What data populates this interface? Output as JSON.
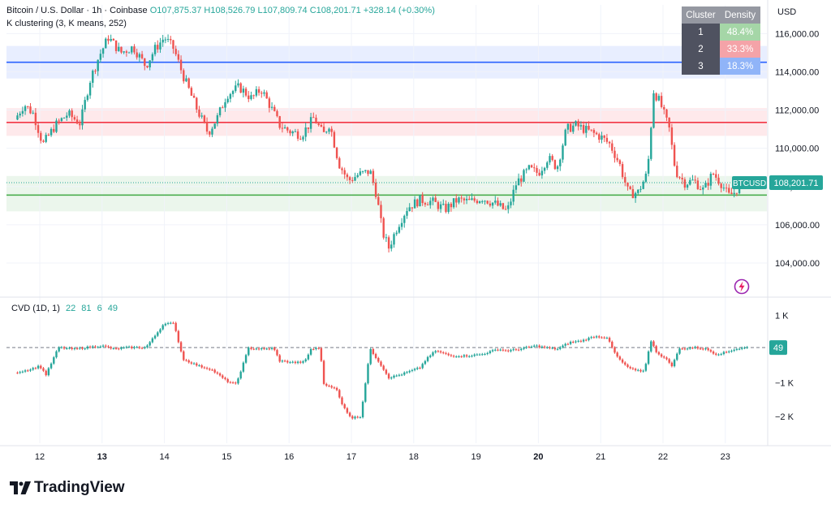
{
  "header": {
    "symbol": "Bitcoin / U.S. Dollar · 1h · Coinbase",
    "open_label": "O",
    "open": "107,875.37",
    "high_label": "H",
    "high": "108,526.79",
    "low_label": "L",
    "low": "107,809.74",
    "close_label": "C",
    "close": "108,201.71",
    "change": "+328.14 (+0.30%)",
    "indicator": "K clustering (3, K means, 252)"
  },
  "currency": "USD",
  "cluster_table": {
    "headers": [
      "Cluster",
      "Density"
    ],
    "rows": [
      {
        "id": "1",
        "density": "48.4%",
        "color": "#a5d6a7"
      },
      {
        "id": "2",
        "density": "33.3%",
        "color": "#f4a3a8"
      },
      {
        "id": "3",
        "density": "18.3%",
        "color": "#90b4f8"
      }
    ]
  },
  "price_tag": {
    "symbol": "BTCUSD",
    "value": "108,201.71"
  },
  "cvd": {
    "label": "CVD (1D, 1)",
    "values": [
      "22",
      "81",
      "6",
      "49"
    ],
    "tag": "49"
  },
  "logo": "TradingView",
  "colors": {
    "up": "#26a69a",
    "down": "#ef5350",
    "blue_line": "#2962ff",
    "red_line": "#f23645",
    "green_line": "#4caf50"
  },
  "chart_data": {
    "type": "candlestick",
    "x_tick_labels": [
      "12",
      "13",
      "14",
      "15",
      "16",
      "17",
      "18",
      "19",
      "20",
      "21",
      "22",
      "23"
    ],
    "x_tick_bold": [
      "13",
      "20"
    ],
    "price_axis": {
      "ticks": [
        104000,
        106000,
        108000,
        110000,
        112000,
        114000,
        116000
      ],
      "tick_labels": [
        "104,000.00",
        "106,000.00",
        "108,000.00",
        "110,000.00",
        "112,000.00",
        "114,000.00",
        "116,000.00"
      ],
      "ylim": [
        102300,
        117500
      ]
    },
    "cluster_levels": [
      {
        "cluster": "3",
        "price": 114500,
        "band": [
          113650,
          115350
        ],
        "color": "#2962ff"
      },
      {
        "cluster": "2",
        "price": 111350,
        "band": [
          110650,
          112100
        ],
        "color": "#f23645"
      },
      {
        "cluster": "1",
        "price": 107550,
        "band": [
          106700,
          108550
        ],
        "color": "#4caf50"
      }
    ],
    "price_path": [
      {
        "day": 11.6,
        "price": 111500
      },
      {
        "day": 11.75,
        "price": 112300
      },
      {
        "day": 11.9,
        "price": 111800
      },
      {
        "day": 12.05,
        "price": 110200
      },
      {
        "day": 12.25,
        "price": 111200
      },
      {
        "day": 12.45,
        "price": 111800
      },
      {
        "day": 12.65,
        "price": 111300
      },
      {
        "day": 12.8,
        "price": 113500
      },
      {
        "day": 12.95,
        "price": 114800
      },
      {
        "day": 13.1,
        "price": 115800
      },
      {
        "day": 13.3,
        "price": 115000
      },
      {
        "day": 13.5,
        "price": 115300
      },
      {
        "day": 13.7,
        "price": 114300
      },
      {
        "day": 13.85,
        "price": 115200
      },
      {
        "day": 14.0,
        "price": 115800
      },
      {
        "day": 14.15,
        "price": 115200
      },
      {
        "day": 14.3,
        "price": 113800
      },
      {
        "day": 14.5,
        "price": 112200
      },
      {
        "day": 14.7,
        "price": 110800
      },
      {
        "day": 14.85,
        "price": 111600
      },
      {
        "day": 15.0,
        "price": 112800
      },
      {
        "day": 15.2,
        "price": 113200
      },
      {
        "day": 15.4,
        "price": 112600
      },
      {
        "day": 15.55,
        "price": 113100
      },
      {
        "day": 15.7,
        "price": 112200
      },
      {
        "day": 15.85,
        "price": 111200
      },
      {
        "day": 16.0,
        "price": 110900
      },
      {
        "day": 16.2,
        "price": 110700
      },
      {
        "day": 16.4,
        "price": 111600
      },
      {
        "day": 16.55,
        "price": 110700
      },
      {
        "day": 16.65,
        "price": 111300
      },
      {
        "day": 16.8,
        "price": 109200
      },
      {
        "day": 16.95,
        "price": 108300
      },
      {
        "day": 17.1,
        "price": 108600
      },
      {
        "day": 17.3,
        "price": 108800
      },
      {
        "day": 17.4,
        "price": 107600
      },
      {
        "day": 17.5,
        "price": 105600
      },
      {
        "day": 17.6,
        "price": 104800
      },
      {
        "day": 17.75,
        "price": 106000
      },
      {
        "day": 17.9,
        "price": 106900
      },
      {
        "day": 18.1,
        "price": 107300
      },
      {
        "day": 18.3,
        "price": 107200
      },
      {
        "day": 18.5,
        "price": 106800
      },
      {
        "day": 18.7,
        "price": 107300
      },
      {
        "day": 18.9,
        "price": 107200
      },
      {
        "day": 19.1,
        "price": 107400
      },
      {
        "day": 19.3,
        "price": 107100
      },
      {
        "day": 19.5,
        "price": 106700
      },
      {
        "day": 19.65,
        "price": 108200
      },
      {
        "day": 19.85,
        "price": 108900
      },
      {
        "day": 20.0,
        "price": 108700
      },
      {
        "day": 20.15,
        "price": 109500
      },
      {
        "day": 20.3,
        "price": 109000
      },
      {
        "day": 20.45,
        "price": 111000
      },
      {
        "day": 20.6,
        "price": 111200
      },
      {
        "day": 20.8,
        "price": 110900
      },
      {
        "day": 21.0,
        "price": 110600
      },
      {
        "day": 21.15,
        "price": 110200
      },
      {
        "day": 21.3,
        "price": 109200
      },
      {
        "day": 21.45,
        "price": 107600
      },
      {
        "day": 21.6,
        "price": 107700
      },
      {
        "day": 21.75,
        "price": 108700
      },
      {
        "day": 21.85,
        "price": 113000
      },
      {
        "day": 21.95,
        "price": 112400
      },
      {
        "day": 22.1,
        "price": 111000
      },
      {
        "day": 22.2,
        "price": 108800
      },
      {
        "day": 22.35,
        "price": 108200
      },
      {
        "day": 22.5,
        "price": 108300
      },
      {
        "day": 22.65,
        "price": 107800
      },
      {
        "day": 22.8,
        "price": 108700
      },
      {
        "day": 22.95,
        "price": 108100
      },
      {
        "day": 23.05,
        "price": 107500
      },
      {
        "day": 23.15,
        "price": 107700
      },
      {
        "day": 23.25,
        "price": 108200
      }
    ],
    "cvd_axis": {
      "ticks": [
        1000,
        0,
        -1000,
        -2000
      ],
      "tick_labels": [
        "1 K",
        "",
        "−1 K",
        "−2 K"
      ],
      "ylim": [
        -2800,
        1500
      ],
      "zero_value": 49
    },
    "cvd_path": [
      {
        "day": 11.6,
        "v": -700
      },
      {
        "day": 11.85,
        "v": -600
      },
      {
        "day": 12.0,
        "v": -500
      },
      {
        "day": 12.1,
        "v": -760
      },
      {
        "day": 12.3,
        "v": 50
      },
      {
        "day": 12.55,
        "v": 0
      },
      {
        "day": 12.75,
        "v": 50
      },
      {
        "day": 13.0,
        "v": 100
      },
      {
        "day": 13.2,
        "v": 0
      },
      {
        "day": 13.4,
        "v": 50
      },
      {
        "day": 13.7,
        "v": 50
      },
      {
        "day": 13.85,
        "v": 400
      },
      {
        "day": 14.0,
        "v": 780
      },
      {
        "day": 14.15,
        "v": 760
      },
      {
        "day": 14.3,
        "v": -300
      },
      {
        "day": 14.55,
        "v": -500
      },
      {
        "day": 14.75,
        "v": -600
      },
      {
        "day": 15.0,
        "v": -950
      },
      {
        "day": 15.15,
        "v": -1050
      },
      {
        "day": 15.35,
        "v": 30
      },
      {
        "day": 15.6,
        "v": 0
      },
      {
        "day": 15.75,
        "v": 30
      },
      {
        "day": 15.85,
        "v": -350
      },
      {
        "day": 16.1,
        "v": -400
      },
      {
        "day": 16.25,
        "v": -380
      },
      {
        "day": 16.35,
        "v": 0
      },
      {
        "day": 16.5,
        "v": 30
      },
      {
        "day": 16.55,
        "v": -1050
      },
      {
        "day": 16.75,
        "v": -1150
      },
      {
        "day": 16.85,
        "v": -1650
      },
      {
        "day": 17.0,
        "v": -2050
      },
      {
        "day": 17.15,
        "v": -2000
      },
      {
        "day": 17.3,
        "v": 0
      },
      {
        "day": 17.45,
        "v": -400
      },
      {
        "day": 17.6,
        "v": -850
      },
      {
        "day": 17.8,
        "v": -750
      },
      {
        "day": 17.95,
        "v": -650
      },
      {
        "day": 18.1,
        "v": -550
      },
      {
        "day": 18.2,
        "v": -300
      },
      {
        "day": 18.35,
        "v": -50
      },
      {
        "day": 18.6,
        "v": -200
      },
      {
        "day": 18.85,
        "v": -200
      },
      {
        "day": 19.1,
        "v": -150
      },
      {
        "day": 19.35,
        "v": 0
      },
      {
        "day": 19.5,
        "v": -50
      },
      {
        "day": 19.7,
        "v": 0
      },
      {
        "day": 19.95,
        "v": 100
      },
      {
        "day": 20.1,
        "v": 50
      },
      {
        "day": 20.3,
        "v": 0
      },
      {
        "day": 20.5,
        "v": 200
      },
      {
        "day": 20.7,
        "v": 250
      },
      {
        "day": 20.9,
        "v": 380
      },
      {
        "day": 21.1,
        "v": 350
      },
      {
        "day": 21.25,
        "v": -200
      },
      {
        "day": 21.4,
        "v": -500
      },
      {
        "day": 21.55,
        "v": -640
      },
      {
        "day": 21.7,
        "v": -650
      },
      {
        "day": 21.8,
        "v": 250
      },
      {
        "day": 21.9,
        "v": -100
      },
      {
        "day": 22.05,
        "v": -300
      },
      {
        "day": 22.15,
        "v": -500
      },
      {
        "day": 22.25,
        "v": 0
      },
      {
        "day": 22.5,
        "v": 50
      },
      {
        "day": 22.7,
        "v": 0
      },
      {
        "day": 22.85,
        "v": -150
      },
      {
        "day": 23.0,
        "v": -100
      },
      {
        "day": 23.15,
        "v": 0
      },
      {
        "day": 23.35,
        "v": 49
      }
    ]
  }
}
